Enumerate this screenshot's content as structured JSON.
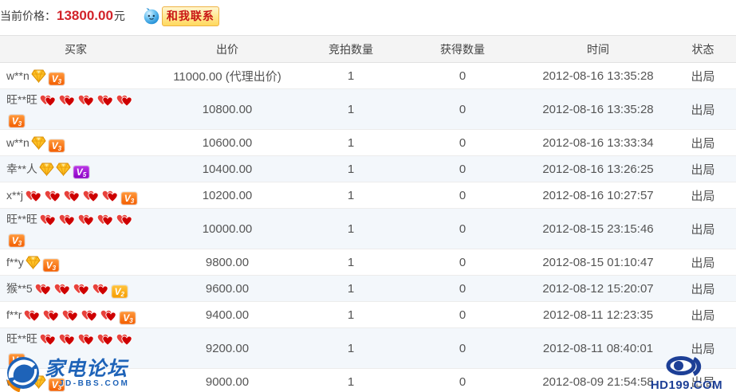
{
  "topbar": {
    "price_label": "当前价格：",
    "price": "13800.00",
    "currency_unit": "元",
    "contact_label": "和我联系"
  },
  "table": {
    "headers": {
      "buyer": "买家",
      "bid": "出价",
      "bid_count": "竞拍数量",
      "won_count": "获得数量",
      "time": "时间",
      "status": "状态"
    },
    "rows": [
      {
        "buyer": "w**n",
        "diamonds": 1,
        "hearts": 0,
        "vip": "V3",
        "bid": "11000.00 (代理出价)",
        "bid_count": "1",
        "won_count": "0",
        "time": "2012-08-16 13:35:28",
        "status": "出局"
      },
      {
        "buyer": "旺**旺",
        "diamonds": 0,
        "hearts": 5,
        "vip": "V3",
        "bid": "10800.00",
        "bid_count": "1",
        "won_count": "0",
        "time": "2012-08-16 13:35:28",
        "status": "出局"
      },
      {
        "buyer": "w**n",
        "diamonds": 1,
        "hearts": 0,
        "vip": "V3",
        "bid": "10600.00",
        "bid_count": "1",
        "won_count": "0",
        "time": "2012-08-16 13:33:34",
        "status": "出局"
      },
      {
        "buyer": "幸**人",
        "diamonds": 2,
        "hearts": 0,
        "vip": "V5",
        "bid": "10400.00",
        "bid_count": "1",
        "won_count": "0",
        "time": "2012-08-16 13:26:25",
        "status": "出局"
      },
      {
        "buyer": "x**j",
        "diamonds": 0,
        "hearts": 5,
        "vip": "V3",
        "bid": "10200.00",
        "bid_count": "1",
        "won_count": "0",
        "time": "2012-08-16 10:27:57",
        "status": "出局"
      },
      {
        "buyer": "旺**旺",
        "diamonds": 0,
        "hearts": 5,
        "vip": "V3",
        "bid": "10000.00",
        "bid_count": "1",
        "won_count": "0",
        "time": "2012-08-15 23:15:46",
        "status": "出局"
      },
      {
        "buyer": "f**y",
        "diamonds": 1,
        "hearts": 0,
        "vip": "V3",
        "bid": "9800.00",
        "bid_count": "1",
        "won_count": "0",
        "time": "2012-08-15 01:10:47",
        "status": "出局"
      },
      {
        "buyer": "猴**5",
        "diamonds": 0,
        "hearts": 4,
        "vip": "V2",
        "bid": "9600.00",
        "bid_count": "1",
        "won_count": "0",
        "time": "2012-08-12 15:20:07",
        "status": "出局"
      },
      {
        "buyer": "f**r",
        "diamonds": 0,
        "hearts": 5,
        "vip": "V3",
        "bid": "9400.00",
        "bid_count": "1",
        "won_count": "0",
        "time": "2012-08-11 12:23:35",
        "status": "出局"
      },
      {
        "buyer": "旺**旺",
        "diamonds": 0,
        "hearts": 5,
        "vip": "V3",
        "bid": "9200.00",
        "bid_count": "1",
        "won_count": "0",
        "time": "2012-08-11 08:40:01",
        "status": "出局"
      },
      {
        "buyer": "w**o",
        "diamonds": 1,
        "hearts": 0,
        "vip": "V3",
        "bid": "9000.00",
        "bid_count": "1",
        "won_count": "0",
        "time": "2012-08-09 21:54:58",
        "status": "出局"
      }
    ]
  },
  "watermarks": {
    "jdbbs": {
      "title": "家电论坛",
      "domain": "JD-BBS.COM"
    },
    "hd199": {
      "domain": "HD199.COM"
    }
  },
  "icons": {
    "contact_icon": "wangwang-icon",
    "buyer_rank_icons": [
      "gold-diamond-icon",
      "red-heart-icon",
      "vip-badge"
    ],
    "watermark_icons": [
      "jdbbs-logo-icon",
      "hd199-eye-icon"
    ]
  },
  "colors": {
    "price_red": "#d2232a",
    "row_stripe": "#f3f7fb",
    "header_bg": "#f4f4f4",
    "vip_v2": "#f59b00",
    "vip_v3": "#f25d00",
    "vip_v5": "#8a00c4",
    "heart_red": "#ce0000",
    "diamond_gold": "#ffc125",
    "watermark_blue": "#1e63b8",
    "hd199_navy": "#1d3f96"
  }
}
